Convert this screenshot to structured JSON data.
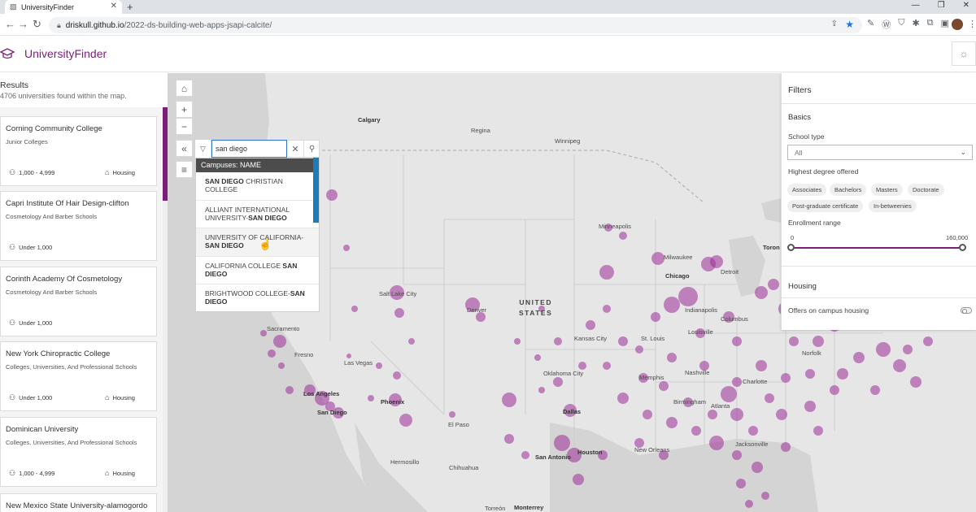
{
  "browser": {
    "tab_title": "UniversityFinder",
    "url_host": "driskull.github.io",
    "url_path": "/2022-ds-building-web-apps-jsapi-calcite/"
  },
  "app": {
    "title": "UniversityFinder"
  },
  "results": {
    "title": "Results",
    "count_text": "4706 universities found within the map.",
    "cards": [
      {
        "name": "Corning Community College",
        "type": "Junior Colleges",
        "enrollment": "1,000 - 4,999",
        "housing": "Housing"
      },
      {
        "name": "Capri Institute Of Hair Design-clifton",
        "type": "Cosmetology And Barber Schools",
        "enrollment": "Under 1,000",
        "housing": ""
      },
      {
        "name": "Corinth Academy Of Cosmetology",
        "type": "Cosmetology And Barber Schools",
        "enrollment": "Under 1,000",
        "housing": ""
      },
      {
        "name": "New York Chiropractic College",
        "type": "Colleges, Universities, And Professional Schools",
        "enrollment": "Under 1,000",
        "housing": "Housing"
      },
      {
        "name": "Dominican University",
        "type": "Colleges, Universities, And Professional Schools",
        "enrollment": "1,000 - 4,999",
        "housing": "Housing"
      },
      {
        "name": "New Mexico State University-alamogordo",
        "type": "",
        "enrollment": "",
        "housing": ""
      }
    ]
  },
  "search": {
    "value": "san diego",
    "suggest_header": "Campuses: NAME",
    "suggestions": [
      {
        "pre": "",
        "match": "SAN DIEGO",
        "post": " CHRISTIAN COLLEGE"
      },
      {
        "pre": "ALLIANT INTERNATIONAL UNIVERSITY-",
        "match": "SAN DIEGO",
        "post": ""
      },
      {
        "pre": "UNIVERSITY OF CALIFORNIA-",
        "match": "SAN DIEGO",
        "post": ""
      },
      {
        "pre": "CALIFORNIA COLLEGE ",
        "match": "SAN DIEGO",
        "post": ""
      },
      {
        "pre": "BRIGHTWOOD COLLEGE-",
        "match": "SAN DIEGO",
        "post": ""
      }
    ]
  },
  "filters": {
    "title": "Filters",
    "basics_heading": "Basics",
    "school_type_label": "School type",
    "school_type_value": "All",
    "degree_label": "Highest degree offered",
    "degree_chips": [
      "Associates",
      "Bachelors",
      "Masters",
      "Doctorate",
      "Post-graduate certificate",
      "In-betweenies"
    ],
    "enrollment_label": "Enrollment range",
    "enrollment_min": "0",
    "enrollment_max": "160,000",
    "enrollment_range": [
      0,
      160000
    ],
    "housing_heading": "Housing",
    "housing_label": "Offers on campus housing",
    "housing_on": false
  },
  "map": {
    "labels": {
      "calgary": "Calgary",
      "regina": "Regina",
      "winnipeg": "Winnipeg",
      "us": "UNITED\nSTATES",
      "minneapolis": "Minneapolis",
      "milwaukee": "Milwaukee",
      "chicago": "Chicago",
      "toronto": "Toron",
      "salt_lake": "Salt Lake City",
      "denver": "Denver",
      "sacramento": "Sacramento",
      "fresno": "Fresno",
      "las_vegas": "Las Vegas",
      "los_angeles": "Los Angeles",
      "san_diego": "San Diego",
      "phoenix": "Phoenix",
      "el_paso": "El Paso",
      "oklahoma": "Oklahoma City",
      "dallas": "Dallas",
      "houston": "Houston",
      "san_antonio": "San Antonio",
      "new_orleans": "New Orleans",
      "memphis": "Memphis",
      "st_louis": "St. Louis",
      "kansas_city": "Kansas City",
      "nashville": "Nashville",
      "atlanta": "Atlanta",
      "birmingham": "Birmingham",
      "jacksonville": "Jacksonville",
      "charlotte": "Charlotte",
      "norfolk": "Norfolk",
      "indianapolis": "Indianapolis",
      "louisville": "Louisville",
      "columbus": "Columbus",
      "detroit": "Detroit",
      "hermosillo": "Hermosillo",
      "chihuahua": "Chihuahua",
      "monterrey": "Monterrey",
      "torreon": "Torreón"
    },
    "accent_color": "#9b2c98"
  },
  "colors": {
    "brand": "#7a1f79",
    "link": "#2f75c4",
    "suggest_header": "#4c4c4c"
  }
}
